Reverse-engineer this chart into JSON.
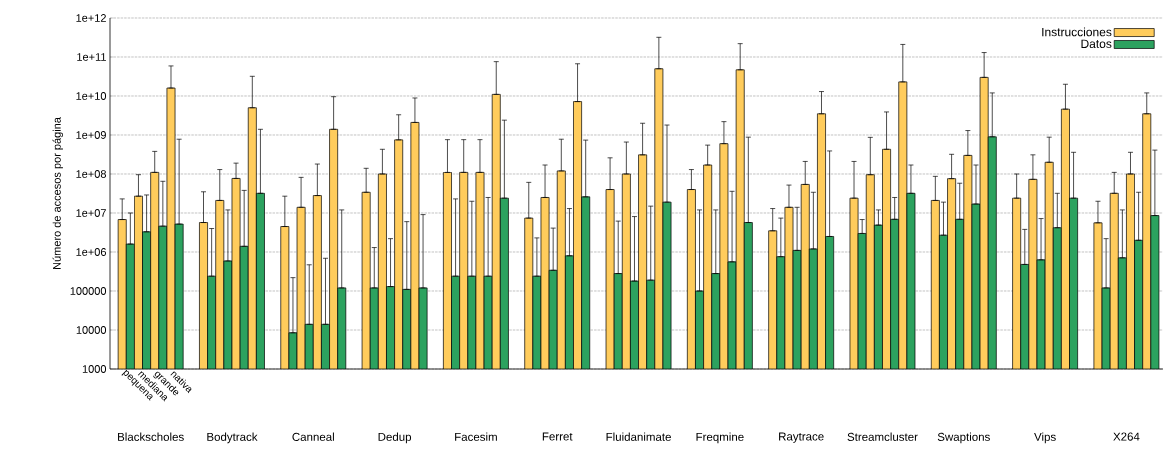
{
  "chart_data": {
    "type": "bar",
    "ylabel": "Número de accesos por página",
    "categories": [
      "Blackscholes",
      "Bodytrack",
      "Canneal",
      "Dedup",
      "Facesim",
      "Ferret",
      "Fluidanimate",
      "Freqmine",
      "Raytrace",
      "Streamcluster",
      "Swaptions",
      "Vips",
      "X264"
    ],
    "series": [
      {
        "name": "Instrucciones",
        "color": "#ffcc5c",
        "values": [
          6800000.0,
          5700000.0,
          4500000.0,
          34000000.0,
          110000000.0,
          7400000.0,
          40000000.0,
          40000000.0,
          3500000.0,
          24000000.0,
          21000000.0,
          24000000.0,
          5600000.0
        ],
        "errors": [
          [
            6800000.0,
            23000000.0
          ],
          [
            5700000.0,
            35000000.0
          ],
          [
            4500000.0,
            27000000.0
          ],
          [
            34000000.0,
            140000000.0
          ],
          [
            110000000.0,
            760000000.0
          ],
          [
            7400000.0,
            61000000.0
          ],
          [
            40000000.0,
            260000000.0
          ],
          [
            40000000.0,
            130000000.0
          ],
          [
            3500000.0,
            13000000.0
          ],
          [
            24000000.0,
            210000000.0
          ],
          [
            21000000.0,
            87000000.0
          ],
          [
            24000000.0,
            100000000.0
          ],
          [
            5600000.0,
            20000000.0
          ]
        ]
      },
      {
        "name": "Datos",
        "color": "#2ca25f",
        "values": [
          1600000.0,
          240000.0,
          8500.0,
          120000.0,
          240000.0,
          240000.0,
          280000.0,
          100000.0,
          760000.0,
          3000000.0,
          2700000.0,
          480000.0,
          120000.0
        ],
        "errors": [
          [
            1600000.0,
            10000000.0
          ],
          [
            240000.0,
            4000000.0
          ],
          [
            8500.0,
            220000.0
          ],
          [
            120000.0,
            1300000.0
          ],
          [
            240000.0,
            23000000.0
          ],
          [
            240000.0,
            2300000.0
          ],
          [
            280000.0,
            6200000.0
          ],
          [
            100000.0,
            12000000.0
          ],
          [
            760000.0,
            7400000.0
          ],
          [
            3000000.0,
            6800000.0
          ],
          [
            2700000.0,
            19000000.0
          ],
          [
            480000.0,
            3800000.0
          ],
          [
            120000.0,
            2200000.0
          ]
        ]
      },
      {
        "color": "#ffcc5c",
        "values": [
          27000000.0,
          21000000.0,
          14000000.0,
          100000000.0,
          110000000.0,
          25000000.0,
          100000000.0,
          170000000.0,
          14000000.0,
          96000000.0,
          76000000.0,
          73000000.0,
          32000000.0
        ],
        "errors": [
          [
            27000000.0,
            96000000.0
          ],
          [
            21000000.0,
            130000000.0
          ],
          [
            14000000.0,
            82000000.0
          ],
          [
            100000000.0,
            430000000.0
          ],
          [
            110000000.0,
            760000000.0
          ],
          [
            25000000.0,
            170000000.0
          ],
          [
            100000000.0,
            660000000.0
          ],
          [
            170000000.0,
            550000000.0
          ],
          [
            14000000.0,
            52000000.0
          ],
          [
            96000000.0,
            870000000.0
          ],
          [
            76000000.0,
            320000000.0
          ],
          [
            73000000.0,
            310000000.0
          ],
          [
            32000000.0,
            110000000.0
          ]
        ]
      },
      {
        "color": "#2ca25f",
        "values": [
          3300000.0,
          590000.0,
          14000.0,
          130000.0,
          240000.0,
          340000.0,
          180000.0,
          280000.0,
          1100000.0,
          4900000.0,
          6900000.0,
          630000.0,
          710000.0
        ],
        "errors": [
          [
            3300000.0,
            29000000.0
          ],
          [
            590000.0,
            12000000.0
          ],
          [
            14000.0,
            470000.0
          ],
          [
            130000.0,
            2200000.0
          ],
          [
            240000.0,
            20000000.0
          ],
          [
            340000.0,
            4100000.0
          ],
          [
            180000.0,
            8100000.0
          ],
          [
            280000.0,
            12000000.0
          ],
          [
            1100000.0,
            14000000.0
          ],
          [
            4900000.0,
            12000000.0
          ],
          [
            6900000.0,
            58000000.0
          ],
          [
            630000.0,
            7200000.0
          ],
          [
            710000.0,
            12000000.0
          ]
        ]
      },
      {
        "color": "#ffcc5c",
        "values": [
          110000000.0,
          77000000.0,
          28000000.0,
          750000000.0,
          110000000.0,
          120000000.0,
          310000000.0,
          600000000.0,
          54000000.0,
          430000000.0,
          300000000.0,
          200000000.0,
          100000000.0
        ],
        "errors": [
          [
            110000000.0,
            380000000.0
          ],
          [
            77000000.0,
            190000000.0
          ],
          [
            28000000.0,
            180000000.0
          ],
          [
            750000000.0,
            3300000000.0
          ],
          [
            110000000.0,
            760000000.0
          ],
          [
            120000000.0,
            780000000.0
          ],
          [
            310000000.0,
            2000000000.0
          ],
          [
            600000000.0,
            2200000000.0
          ],
          [
            54000000.0,
            210000000.0
          ],
          [
            430000000.0,
            3900000000.0
          ],
          [
            300000000.0,
            1300000000.0
          ],
          [
            200000000.0,
            880000000.0
          ],
          [
            100000000.0,
            360000000.0
          ]
        ]
      },
      {
        "color": "#2ca25f",
        "values": [
          4600000.0,
          1400000.0,
          14000.0,
          110000.0,
          240000.0,
          800000.0,
          190000.0,
          560000.0,
          1200000.0,
          6900000.0,
          17000000.0,
          4200000.0,
          2000000.0
        ],
        "errors": [
          [
            4600000.0,
            65000000.0
          ],
          [
            1400000.0,
            38000000.0
          ],
          [
            14000.0,
            690000.0
          ],
          [
            110000.0,
            6000000.0
          ],
          [
            240000.0,
            25000000.0
          ],
          [
            800000.0,
            13000000.0
          ],
          [
            190000.0,
            15000000.0
          ],
          [
            560000.0,
            36000000.0
          ],
          [
            1200000.0,
            34000000.0
          ],
          [
            6900000.0,
            25000000.0
          ],
          [
            17000000.0,
            170000000.0
          ],
          [
            4200000.0,
            32000000.0
          ],
          [
            2000000.0,
            34000000.0
          ]
        ]
      },
      {
        "color": "#ffcc5c",
        "values": [
          16000000000.0,
          5000000000.0,
          1400000000.0,
          2100000000.0,
          11000000000.0,
          7200000000.0,
          50000000000.0,
          47000000000.0,
          3500000000.0,
          23000000000.0,
          30000000000.0,
          4600000000.0,
          3500000000.0
        ],
        "errors": [
          [
            16000000000.0,
            59000000000.0
          ],
          [
            5000000000.0,
            32000000000.0
          ],
          [
            1400000000.0,
            9600000000.0
          ],
          [
            2100000000.0,
            8900000000.0
          ],
          [
            11000000000.0,
            76000000000.0
          ],
          [
            7200000000.0,
            67000000000.0
          ],
          [
            50000000000.0,
            320000000000.0
          ],
          [
            47000000000.0,
            220000000000.0
          ],
          [
            3500000000.0,
            13000000000.0
          ],
          [
            23000000000.0,
            210000000000.0
          ],
          [
            30000000000.0,
            130000000000.0
          ],
          [
            4600000000.0,
            20000000000.0
          ],
          [
            3500000000.0,
            12000000000.0
          ]
        ]
      },
      {
        "color": "#2ca25f",
        "values": [
          5200000.0,
          32000000.0,
          120000.0,
          120000.0,
          24000000.0,
          26000000.0,
          19000000.0,
          5700000.0,
          2500000.0,
          32000000.0,
          900000000.0,
          24000000.0,
          8600000.0
        ],
        "errors": [
          [
            5200000.0,
            780000000.0
          ],
          [
            32000000.0,
            1400000000.0
          ],
          [
            120000.0,
            12000000.0
          ],
          [
            120000.0,
            9100000.0
          ],
          [
            24000000.0,
            2400000000.0
          ],
          [
            26000000.0,
            740000000.0
          ],
          [
            19000000.0,
            1800000000.0
          ],
          [
            5700000.0,
            880000000.0
          ],
          [
            2500000.0,
            390000000.0
          ],
          [
            32000000.0,
            170000000.0
          ],
          [
            900000000.0,
            12000000000.0
          ],
          [
            24000000.0,
            360000000.0
          ],
          [
            8600000.0,
            410000000.0
          ]
        ]
      }
    ],
    "log": true,
    "ylim": [
      1000,
      1000000000000.0
    ],
    "yticks": [
      1000,
      10000,
      100000,
      {
        "value": 1000000.0,
        "label": "1e+06"
      },
      {
        "value": 10000000.0,
        "label": "1e+07"
      },
      {
        "value": 100000000.0,
        "label": "1e+08"
      },
      {
        "value": 1000000000.0,
        "label": "1e+09"
      },
      {
        "value": 10000000000.0,
        "label": "1e+10"
      },
      {
        "value": 100000000000.0,
        "label": "1e+11"
      },
      {
        "value": 1000000000000.0,
        "label": "1e+12"
      }
    ],
    "grid": "y",
    "legend": "top right",
    "annotations": [
      "pequena",
      "mediana",
      "grande",
      "nativa"
    ]
  }
}
